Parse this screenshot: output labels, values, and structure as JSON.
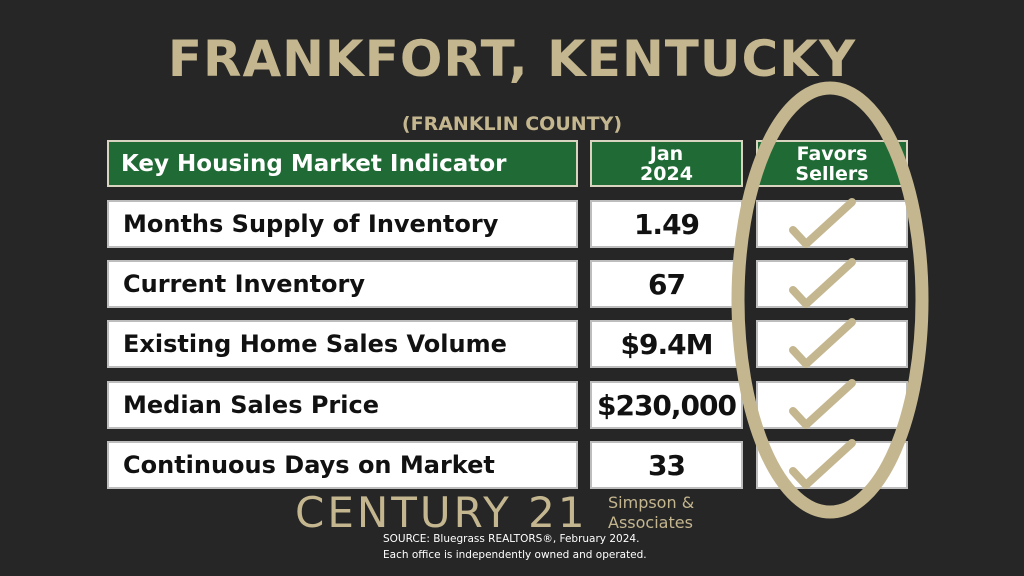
{
  "header": {
    "title": "FRANKFORT, KENTUCKY",
    "subtitle": "(FRANKLIN COUNTY)"
  },
  "table": {
    "columns": [
      "Key Housing Market Indicator",
      "Jan 2024",
      "Favors Sellers"
    ],
    "rows": [
      [
        "Months Supply of Inventory",
        "1.49"
      ],
      [
        "Current Inventory",
        "67"
      ],
      [
        "Existing Home Sales Volume",
        "$9.4M"
      ],
      [
        "Median Sales Price",
        "$230,000"
      ],
      [
        "Continuous Days on Market",
        "33"
      ]
    ]
  },
  "footer": {
    "brand": "CENTURY 21",
    "office_line1": "Simpson &",
    "office_line2": "Associates",
    "source": "SOURCE: Bluegrass REALTORS®, February 2024.",
    "disclaimer": "Each office is independently owned and operated."
  }
}
